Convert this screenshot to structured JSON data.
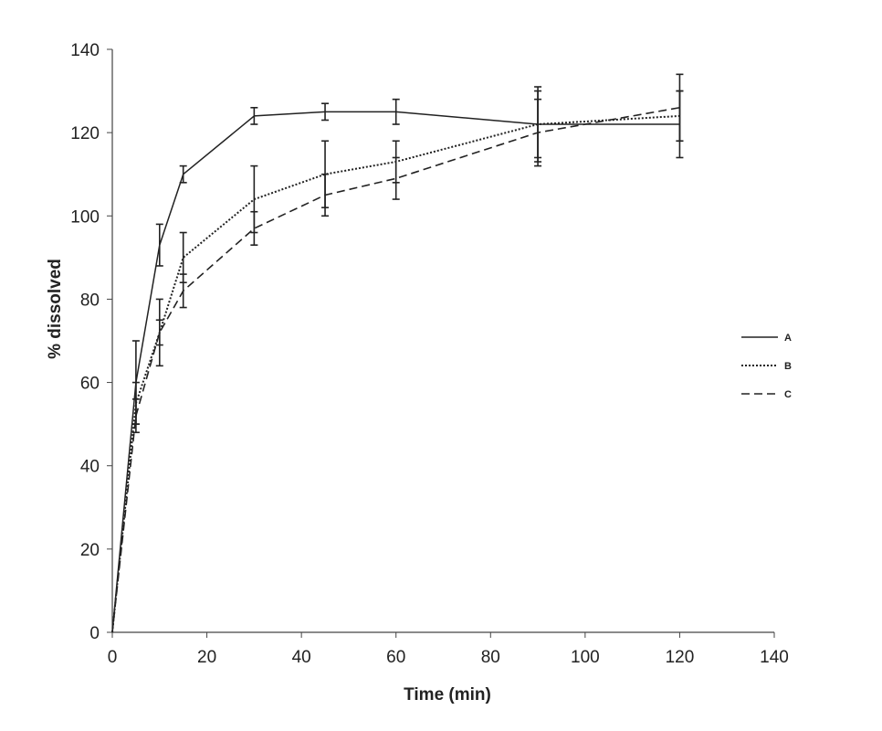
{
  "chart_data": {
    "type": "line",
    "title": "",
    "xlabel": "Time (min)",
    "ylabel": "% dissolved",
    "xlim": [
      0,
      140
    ],
    "ylim": [
      0,
      140
    ],
    "x_ticks": [
      0,
      20,
      40,
      60,
      80,
      100,
      120,
      140
    ],
    "x_tick_labels": [
      "0",
      "20",
      "40",
      "60",
      "80",
      "100",
      "120",
      "140"
    ],
    "y_ticks": [
      0,
      20,
      40,
      60,
      80,
      100,
      120,
      140
    ],
    "y_tick_labels": [
      "0",
      "20",
      "40",
      "60",
      "80",
      "100",
      "120",
      "140"
    ],
    "grid": false,
    "legend_position": "right",
    "x": [
      0,
      5,
      10,
      15,
      30,
      45,
      60,
      90,
      120
    ],
    "series": [
      {
        "name": "A",
        "style": "solid",
        "values": [
          0,
          60,
          93,
          110,
          124,
          125,
          125,
          122,
          122
        ],
        "errors": [
          0,
          10,
          5,
          2,
          2,
          2,
          3,
          8,
          8
        ]
      },
      {
        "name": "B",
        "style": "dotted",
        "values": [
          0,
          55,
          72,
          90,
          104,
          110,
          113,
          122,
          124
        ],
        "errors": [
          0,
          5,
          8,
          6,
          8,
          8,
          5,
          9,
          6
        ]
      },
      {
        "name": "C",
        "style": "dashed",
        "values": [
          0,
          52,
          72,
          82,
          97,
          105,
          109,
          120,
          126
        ],
        "errors": [
          0,
          4,
          3,
          4,
          4,
          5,
          5,
          8,
          8
        ]
      }
    ]
  }
}
